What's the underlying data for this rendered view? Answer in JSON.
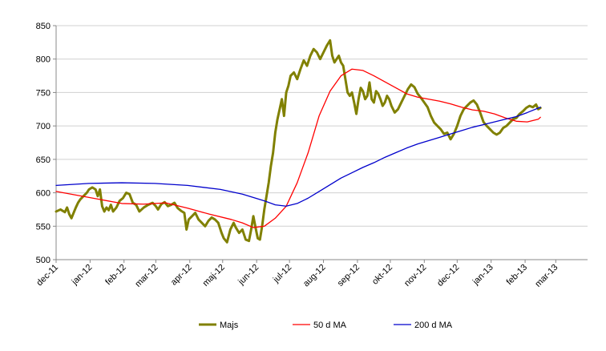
{
  "chart_data": {
    "type": "line",
    "title": "",
    "xlabel": "",
    "ylabel": "",
    "ylim": [
      500,
      850
    ],
    "yticks": [
      500,
      550,
      600,
      650,
      700,
      750,
      800,
      850
    ],
    "x_tick_labels": [
      "dec-11",
      "jan-12",
      "feb-12",
      "mar-12",
      "apr-12",
      "maj-12",
      "jun-12",
      "jul-12",
      "aug-12",
      "sep-12",
      "okt-12",
      "nov-12",
      "dec-12",
      "jan-13",
      "feb-13",
      "mar-13"
    ],
    "x_tick_days": [
      0,
      31,
      62,
      91,
      122,
      152,
      183,
      213,
      244,
      275,
      305,
      336,
      366,
      397,
      428,
      456
    ],
    "x_range_days": [
      0,
      485
    ],
    "grid": "horizontal",
    "legend_position": "bottom",
    "series": [
      {
        "name": "Majs",
        "color": "#808000",
        "width": 3,
        "points": [
          [
            0,
            572
          ],
          [
            4,
            575
          ],
          [
            8,
            571
          ],
          [
            10,
            578
          ],
          [
            12,
            568
          ],
          [
            14,
            562
          ],
          [
            16,
            570
          ],
          [
            18,
            578
          ],
          [
            20,
            585
          ],
          [
            22,
            590
          ],
          [
            25,
            595
          ],
          [
            28,
            600
          ],
          [
            30,
            605
          ],
          [
            33,
            608
          ],
          [
            36,
            605
          ],
          [
            38,
            595
          ],
          [
            40,
            605
          ],
          [
            42,
            580
          ],
          [
            44,
            572
          ],
          [
            46,
            578
          ],
          [
            48,
            574
          ],
          [
            50,
            582
          ],
          [
            52,
            572
          ],
          [
            55,
            578
          ],
          [
            58,
            588
          ],
          [
            61,
            592
          ],
          [
            64,
            600
          ],
          [
            67,
            598
          ],
          [
            70,
            585
          ],
          [
            73,
            582
          ],
          [
            76,
            572
          ],
          [
            80,
            578
          ],
          [
            84,
            582
          ],
          [
            88,
            585
          ],
          [
            91,
            580
          ],
          [
            93,
            575
          ],
          [
            96,
            583
          ],
          [
            99,
            586
          ],
          [
            102,
            580
          ],
          [
            105,
            582
          ],
          [
            108,
            585
          ],
          [
            111,
            577
          ],
          [
            114,
            573
          ],
          [
            117,
            570
          ],
          [
            119,
            545
          ],
          [
            121,
            560
          ],
          [
            124,
            565
          ],
          [
            127,
            570
          ],
          [
            130,
            560
          ],
          [
            133,
            555
          ],
          [
            136,
            550
          ],
          [
            139,
            558
          ],
          [
            142,
            563
          ],
          [
            145,
            560
          ],
          [
            148,
            555
          ],
          [
            151,
            540
          ],
          [
            153,
            532
          ],
          [
            156,
            526
          ],
          [
            159,
            545
          ],
          [
            162,
            555
          ],
          [
            164,
            548
          ],
          [
            167,
            540
          ],
          [
            170,
            545
          ],
          [
            173,
            530
          ],
          [
            176,
            528
          ],
          [
            178,
            545
          ],
          [
            180,
            565
          ],
          [
            182,
            548
          ],
          [
            184,
            532
          ],
          [
            186,
            530
          ],
          [
            188,
            550
          ],
          [
            190,
            575
          ],
          [
            192,
            595
          ],
          [
            194,
            615
          ],
          [
            196,
            640
          ],
          [
            198,
            660
          ],
          [
            200,
            690
          ],
          [
            202,
            710
          ],
          [
            204,
            725
          ],
          [
            206,
            740
          ],
          [
            208,
            715
          ],
          [
            210,
            750
          ],
          [
            212,
            760
          ],
          [
            214,
            775
          ],
          [
            217,
            780
          ],
          [
            220,
            770
          ],
          [
            223,
            785
          ],
          [
            226,
            798
          ],
          [
            229,
            790
          ],
          [
            232,
            805
          ],
          [
            235,
            815
          ],
          [
            238,
            810
          ],
          [
            241,
            800
          ],
          [
            244,
            810
          ],
          [
            247,
            820
          ],
          [
            250,
            828
          ],
          [
            252,
            805
          ],
          [
            254,
            795
          ],
          [
            256,
            800
          ],
          [
            258,
            805
          ],
          [
            260,
            795
          ],
          [
            262,
            790
          ],
          [
            264,
            770
          ],
          [
            266,
            750
          ],
          [
            268,
            745
          ],
          [
            270,
            750
          ],
          [
            272,
            735
          ],
          [
            274,
            718
          ],
          [
            276,
            740
          ],
          [
            278,
            757
          ],
          [
            280,
            752
          ],
          [
            282,
            740
          ],
          [
            284,
            745
          ],
          [
            286,
            765
          ],
          [
            288,
            740
          ],
          [
            290,
            735
          ],
          [
            292,
            752
          ],
          [
            294,
            748
          ],
          [
            296,
            740
          ],
          [
            298,
            730
          ],
          [
            300,
            735
          ],
          [
            302,
            745
          ],
          [
            304,
            740
          ],
          [
            306,
            730
          ],
          [
            309,
            720
          ],
          [
            312,
            725
          ],
          [
            315,
            735
          ],
          [
            318,
            745
          ],
          [
            321,
            755
          ],
          [
            324,
            762
          ],
          [
            327,
            758
          ],
          [
            330,
            748
          ],
          [
            333,
            742
          ],
          [
            336,
            735
          ],
          [
            339,
            728
          ],
          [
            342,
            715
          ],
          [
            345,
            705
          ],
          [
            348,
            700
          ],
          [
            351,
            695
          ],
          [
            354,
            688
          ],
          [
            357,
            690
          ],
          [
            360,
            680
          ],
          [
            363,
            688
          ],
          [
            366,
            700
          ],
          [
            369,
            715
          ],
          [
            372,
            725
          ],
          [
            375,
            730
          ],
          [
            378,
            735
          ],
          [
            381,
            738
          ],
          [
            384,
            732
          ],
          [
            387,
            720
          ],
          [
            390,
            706
          ],
          [
            393,
            700
          ],
          [
            396,
            695
          ],
          [
            399,
            690
          ],
          [
            402,
            687
          ],
          [
            405,
            690
          ],
          [
            408,
            697
          ],
          [
            411,
            700
          ],
          [
            414,
            705
          ],
          [
            417,
            710
          ],
          [
            420,
            712
          ],
          [
            423,
            718
          ],
          [
            426,
            722
          ],
          [
            429,
            727
          ],
          [
            432,
            730
          ],
          [
            435,
            728
          ],
          [
            438,
            732
          ],
          [
            440,
            725
          ],
          [
            442,
            727
          ]
        ]
      },
      {
        "name": "50 d MA",
        "color": "#ff0000",
        "width": 1.3,
        "points": [
          [
            0,
            602
          ],
          [
            20,
            596
          ],
          [
            40,
            590
          ],
          [
            60,
            584
          ],
          [
            80,
            583
          ],
          [
            100,
            585
          ],
          [
            120,
            577
          ],
          [
            140,
            568
          ],
          [
            160,
            560
          ],
          [
            170,
            555
          ],
          [
            180,
            548
          ],
          [
            190,
            550
          ],
          [
            200,
            562
          ],
          [
            210,
            580
          ],
          [
            220,
            615
          ],
          [
            230,
            660
          ],
          [
            240,
            715
          ],
          [
            250,
            752
          ],
          [
            260,
            775
          ],
          [
            270,
            785
          ],
          [
            280,
            783
          ],
          [
            290,
            775
          ],
          [
            300,
            766
          ],
          [
            310,
            757
          ],
          [
            320,
            748
          ],
          [
            330,
            743
          ],
          [
            340,
            740
          ],
          [
            350,
            737
          ],
          [
            360,
            733
          ],
          [
            370,
            728
          ],
          [
            380,
            724
          ],
          [
            390,
            722
          ],
          [
            400,
            718
          ],
          [
            410,
            712
          ],
          [
            420,
            707
          ],
          [
            430,
            706
          ],
          [
            440,
            710
          ],
          [
            442,
            713
          ]
        ]
      },
      {
        "name": "200 d MA",
        "color": "#0000cc",
        "width": 1.3,
        "points": [
          [
            0,
            611
          ],
          [
            30,
            614
          ],
          [
            60,
            615
          ],
          [
            90,
            614
          ],
          [
            120,
            611
          ],
          [
            150,
            605
          ],
          [
            170,
            598
          ],
          [
            190,
            588
          ],
          [
            200,
            582
          ],
          [
            210,
            580
          ],
          [
            220,
            584
          ],
          [
            230,
            592
          ],
          [
            240,
            602
          ],
          [
            250,
            612
          ],
          [
            260,
            622
          ],
          [
            270,
            630
          ],
          [
            280,
            638
          ],
          [
            290,
            645
          ],
          [
            300,
            653
          ],
          [
            310,
            660
          ],
          [
            320,
            667
          ],
          [
            330,
            673
          ],
          [
            340,
            678
          ],
          [
            350,
            683
          ],
          [
            360,
            688
          ],
          [
            370,
            693
          ],
          [
            380,
            698
          ],
          [
            390,
            702
          ],
          [
            400,
            706
          ],
          [
            410,
            710
          ],
          [
            420,
            714
          ],
          [
            430,
            720
          ],
          [
            442,
            728
          ]
        ]
      }
    ]
  }
}
